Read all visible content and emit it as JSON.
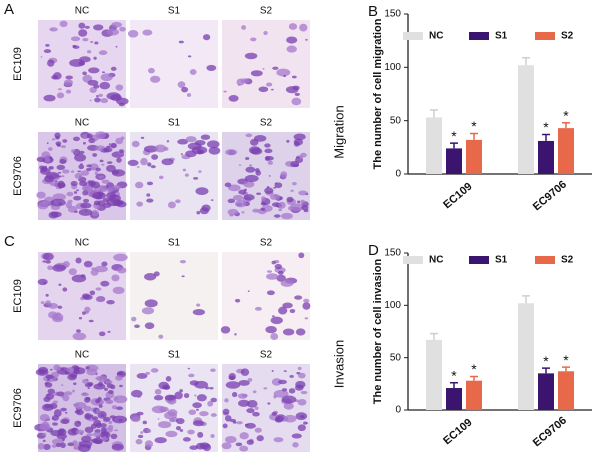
{
  "panels": [
    {
      "label": "A",
      "section": "Migration",
      "rows": [
        {
          "label": "EC109",
          "columns": [
            "NC",
            "S1",
            "S2"
          ]
        },
        {
          "label": "EC9706",
          "columns": [
            "NC",
            "S1",
            "S2"
          ]
        }
      ]
    },
    {
      "label": "C",
      "section": "Invasion",
      "rows": [
        {
          "label": "EC109",
          "columns": [
            "NC",
            "S1",
            "S2"
          ]
        },
        {
          "label": "EC9706",
          "columns": [
            "NC",
            "S1",
            "S2"
          ]
        }
      ]
    }
  ],
  "chart_data": [
    {
      "type": "bar",
      "panel": "B",
      "ylabel": "The number of cell migration",
      "categories": [
        "EC109",
        "EC9706"
      ],
      "series": [
        {
          "name": "NC",
          "color": "#e0e0e0",
          "values": [
            53,
            102
          ],
          "errors": [
            7,
            7
          ]
        },
        {
          "name": "S1",
          "color": "#3b1470",
          "values": [
            24,
            31
          ],
          "errors": [
            5,
            6
          ],
          "annotations": [
            "*",
            "*"
          ]
        },
        {
          "name": "S2",
          "color": "#e8684a",
          "values": [
            32,
            43
          ],
          "errors": [
            6,
            5
          ],
          "annotations": [
            "*",
            "*"
          ]
        }
      ],
      "ylim": [
        0,
        150
      ],
      "yticks": [
        0,
        50,
        100,
        150
      ],
      "legend": "top"
    },
    {
      "type": "bar",
      "panel": "D",
      "ylabel": "The number of cell invasion",
      "categories": [
        "EC109",
        "EC9706"
      ],
      "series": [
        {
          "name": "NC",
          "color": "#e0e0e0",
          "values": [
            67,
            102
          ],
          "errors": [
            6,
            7
          ]
        },
        {
          "name": "S1",
          "color": "#3b1470",
          "values": [
            21,
            35
          ],
          "errors": [
            5,
            5
          ],
          "annotations": [
            "*",
            "*"
          ]
        },
        {
          "name": "S2",
          "color": "#e8684a",
          "values": [
            28,
            37
          ],
          "errors": [
            4,
            4
          ],
          "annotations": [
            "*",
            "*"
          ]
        }
      ],
      "ylim": [
        0,
        150
      ],
      "yticks": [
        0,
        50,
        100,
        150
      ],
      "legend": "top"
    }
  ]
}
